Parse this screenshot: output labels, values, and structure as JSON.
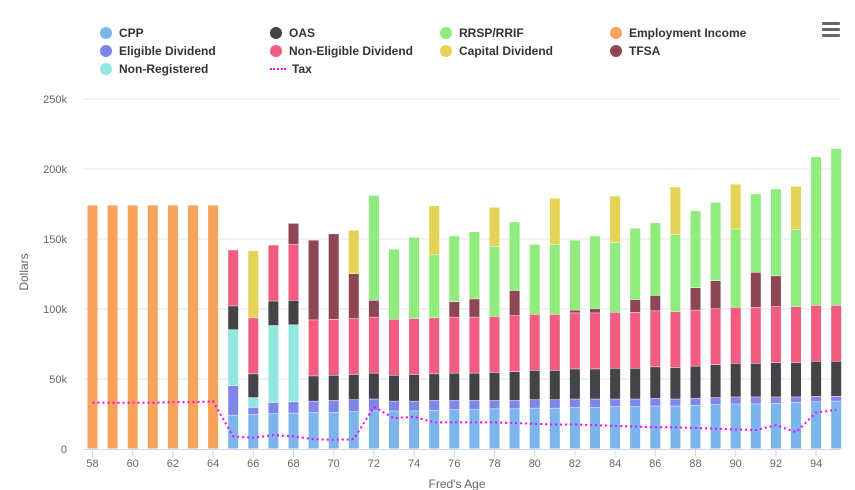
{
  "colors": {
    "cpp": "#7cb5ec",
    "oas": "#434348",
    "rrsp": "#90ed7d",
    "employment": "#f7a35c",
    "eligible": "#8085e9",
    "non_eligible": "#f15c80",
    "capital": "#e4d354",
    "tfsa": "#8d4653",
    "non_registered": "#91e8e1",
    "tax": "#ff00ff"
  },
  "chart_data": {
    "type": "bar",
    "stacked": true,
    "xlabel": "Fred's Age",
    "ylabel": "Dollars",
    "ylim": [
      0,
      250000
    ],
    "y_ticks": [
      0,
      50000,
      100000,
      150000,
      200000,
      250000
    ],
    "y_tick_labels": [
      "0",
      "50k",
      "100k",
      "150k",
      "200k",
      "250k"
    ],
    "x_tick_labels": [
      "58",
      "60",
      "62",
      "64",
      "66",
      "68",
      "70",
      "72",
      "74",
      "76",
      "78",
      "80",
      "82",
      "84",
      "86",
      "88",
      "90",
      "92",
      "94"
    ],
    "x": [
      58,
      59,
      60,
      61,
      62,
      63,
      64,
      65,
      66,
      67,
      68,
      69,
      70,
      71,
      72,
      73,
      74,
      75,
      76,
      77,
      78,
      79,
      80,
      81,
      82,
      83,
      84,
      85,
      86,
      87,
      88,
      89,
      90,
      91,
      92,
      93,
      94,
      95
    ],
    "grid": true,
    "legend": "top",
    "series": [
      {
        "name": "CPP",
        "key": "cpp",
        "values": [
          0,
          0,
          0,
          0,
          0,
          0,
          0,
          24000,
          24500,
          25000,
          25500,
          26000,
          26000,
          26500,
          27000,
          27000,
          27000,
          27500,
          28000,
          28000,
          28500,
          28500,
          29000,
          29000,
          29500,
          29500,
          30000,
          30000,
          30500,
          30500,
          31000,
          31500,
          32000,
          32000,
          32500,
          33000,
          33500,
          34000
        ]
      },
      {
        "name": "Eligible Dividend",
        "key": "eligible",
        "values": [
          0,
          0,
          0,
          0,
          0,
          0,
          0,
          21000,
          5000,
          8000,
          8000,
          8000,
          8500,
          8500,
          8500,
          7000,
          7000,
          7000,
          6500,
          6500,
          6000,
          6000,
          6000,
          6000,
          6000,
          6000,
          5500,
          5500,
          5500,
          5000,
          5000,
          5000,
          5000,
          5000,
          4500,
          4000,
          4000,
          3500
        ]
      },
      {
        "name": "Non-Registered",
        "key": "non_registered",
        "values": [
          0,
          0,
          0,
          0,
          0,
          0,
          0,
          40000,
          7000,
          55000,
          55000,
          0,
          0,
          0,
          0,
          0,
          0,
          0,
          0,
          0,
          0,
          0,
          0,
          0,
          0,
          0,
          0,
          0,
          0,
          0,
          0,
          0,
          0,
          0,
          0,
          0,
          0,
          0
        ]
      },
      {
        "name": "OAS",
        "key": "oas",
        "values": [
          0,
          0,
          0,
          0,
          0,
          0,
          0,
          17000,
          17000,
          17500,
          17500,
          18000,
          18000,
          18000,
          18500,
          18500,
          19000,
          19000,
          19500,
          19500,
          20000,
          20500,
          21000,
          21000,
          21500,
          21500,
          22000,
          22000,
          22500,
          22500,
          23000,
          23500,
          24000,
          24000,
          24500,
          24500,
          25000,
          25000
        ]
      },
      {
        "name": "Non-Eligible Dividend",
        "key": "non_eligible",
        "values": [
          0,
          0,
          0,
          0,
          0,
          0,
          0,
          40000,
          40000,
          40000,
          40000,
          40000,
          40000,
          40000,
          40000,
          40000,
          40000,
          40000,
          40000,
          40000,
          40000,
          40000,
          40000,
          40000,
          40000,
          40000,
          40000,
          40000,
          40000,
          40000,
          40000,
          40000,
          40000,
          40000,
          40000,
          40000,
          40000,
          40000
        ]
      },
      {
        "name": "TFSA",
        "key": "tfsa",
        "values": [
          0,
          0,
          0,
          0,
          0,
          0,
          0,
          0,
          0,
          0,
          15000,
          57000,
          61000,
          32000,
          12000,
          0,
          0,
          0,
          11000,
          13000,
          0,
          18000,
          0,
          0,
          2000,
          3000,
          0,
          9000,
          11000,
          0,
          16000,
          20000,
          0,
          25000,
          22000,
          0,
          0,
          0
        ]
      },
      {
        "name": "RRSP/RRIF",
        "key": "rrsp",
        "values": [
          0,
          0,
          0,
          0,
          0,
          0,
          0,
          0,
          0,
          0,
          0,
          0,
          0,
          0,
          75000,
          50000,
          58000,
          45000,
          47000,
          48000,
          50000,
          49000,
          50000,
          50000,
          50000,
          52000,
          50000,
          51000,
          52000,
          55000,
          55000,
          56000,
          56000,
          56000,
          62000,
          55000,
          106000,
          112000
        ]
      },
      {
        "name": "Capital Dividend",
        "key": "capital",
        "values": [
          0,
          0,
          0,
          0,
          0,
          0,
          0,
          0,
          48000,
          0,
          0,
          0,
          0,
          31000,
          0,
          0,
          0,
          35000,
          0,
          0,
          28000,
          0,
          0,
          33000,
          0,
          0,
          33000,
          0,
          0,
          34000,
          0,
          0,
          32000,
          0,
          0,
          31000,
          0,
          0
        ]
      },
      {
        "name": "Employment Income",
        "key": "employment",
        "values": [
          174000,
          174000,
          174000,
          174000,
          174000,
          174000,
          174000,
          0,
          0,
          0,
          0,
          0,
          0,
          0,
          0,
          0,
          0,
          0,
          0,
          0,
          0,
          0,
          0,
          0,
          0,
          0,
          0,
          0,
          0,
          0,
          0,
          0,
          0,
          0,
          0,
          0,
          0,
          0
        ]
      }
    ],
    "tax": {
      "name": "Tax",
      "key": "tax",
      "values": [
        33000,
        33000,
        33000,
        33000,
        33500,
        33500,
        34000,
        9000,
        8000,
        10000,
        9000,
        7000,
        6500,
        7000,
        30000,
        22000,
        23000,
        19000,
        19000,
        19000,
        19000,
        18500,
        18000,
        17500,
        17500,
        17000,
        16500,
        16000,
        15500,
        15500,
        15000,
        14500,
        14000,
        13500,
        17000,
        12000,
        26000,
        28000
      ]
    },
    "legend_items": [
      {
        "name": "CPP",
        "key": "cpp",
        "marker": "dot"
      },
      {
        "name": "OAS",
        "key": "oas",
        "marker": "dot"
      },
      {
        "name": "RRSP/RRIF",
        "key": "rrsp",
        "marker": "dot"
      },
      {
        "name": "Employment Income",
        "key": "employment",
        "marker": "dot"
      },
      {
        "name": "Eligible Dividend",
        "key": "eligible",
        "marker": "dot"
      },
      {
        "name": "Non-Eligible Dividend",
        "key": "non_eligible",
        "marker": "dot"
      },
      {
        "name": "Capital Dividend",
        "key": "capital",
        "marker": "dot"
      },
      {
        "name": "TFSA",
        "key": "tfsa",
        "marker": "dot"
      },
      {
        "name": "Non-Registered",
        "key": "non_registered",
        "marker": "dot"
      },
      {
        "name": "Tax",
        "key": "tax",
        "marker": "line"
      }
    ]
  },
  "menu": {
    "icon": "hamburger-menu-icon"
  }
}
